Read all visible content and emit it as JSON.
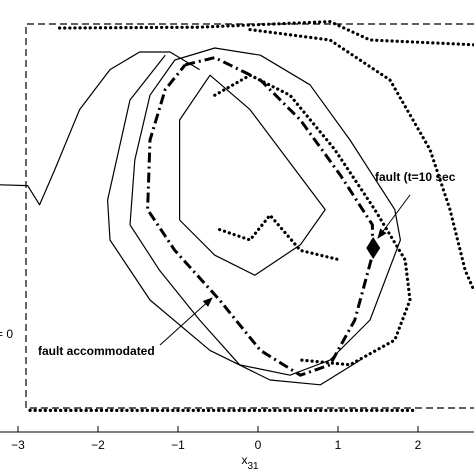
{
  "chart_data": {
    "type": "line",
    "xlabel": {
      "base": "x",
      "subscript": "31"
    },
    "left_label": "= 0",
    "annotations": [
      "fault (t=10 sec",
      "fault accommodated"
    ],
    "xlim": [
      -3.225,
      2.7
    ],
    "ylim": [
      -2.5,
      2.9
    ],
    "xticks": [
      {
        "value": -3,
        "label": "−3"
      },
      {
        "value": -2,
        "label": "−2"
      },
      {
        "value": -1,
        "label": "−1"
      },
      0,
      1,
      2
    ],
    "grid": false,
    "series": [
      {
        "color": "#000000",
        "style": "dashed",
        "x": [
          2.7,
          -2.9,
          -2.9,
          2.7
        ],
        "values": [
          2.6,
          2.6,
          -2.2,
          -2.2
        ]
      },
      {
        "color": "#000000",
        "style": "solid",
        "x": [
          -3.23,
          -2.88,
          -2.73,
          -2.54,
          -2.23,
          -1.85,
          -1.48,
          -1.1,
          -0.73
        ],
        "values": [
          0.59,
          0.58,
          0.34,
          0.78,
          1.53,
          2.03,
          2.25,
          2.25,
          2.03
        ]
      },
      {
        "color": "#000000",
        "style": "solid",
        "x": [
          -1.04,
          -0.54,
          0.03,
          0.65,
          1.15,
          1.71,
          1.78,
          1.4,
          0.9,
          0.4,
          -0.23,
          -0.73,
          -1.23,
          -1.6,
          -1.54,
          -1.35,
          -1.04
        ],
        "values": [
          2.15,
          2.3,
          2.21,
          1.84,
          1.15,
          0.28,
          -0.1,
          -1.1,
          -1.6,
          -1.79,
          -1.66,
          -1.1,
          -0.48,
          0.09,
          0.9,
          1.71,
          2.15
        ]
      },
      {
        "color": "#000000",
        "style": "solid",
        "x": [
          -1.16,
          -1.6,
          -1.88,
          -1.85,
          -1.35,
          -0.6,
          0.15,
          0.78,
          1.28
        ],
        "values": [
          2.21,
          1.65,
          0.4,
          -0.1,
          -0.85,
          -1.48,
          -1.85,
          -1.91,
          -1.6
        ]
      },
      {
        "color": "#000000",
        "style": "solid",
        "x": [
          -0.98,
          -0.98,
          -0.6,
          -0.1,
          0.84,
          0.53,
          -0.04,
          -0.54,
          -0.98
        ],
        "values": [
          0.15,
          1.4,
          1.96,
          1.53,
          0.28,
          -0.16,
          -0.54,
          -0.29,
          0.15
        ]
      },
      {
        "color": "#000000",
        "style": "dashdot",
        "x": [
          -0.91,
          -0.54,
          0.03,
          0.53,
          1.03,
          1.43,
          1.43,
          1.21,
          0.9,
          0.53,
          0.03,
          -0.48,
          -1.04,
          -1.38,
          -1.35,
          -1.16,
          -0.91
        ],
        "values": [
          2.09,
          2.18,
          1.9,
          1.4,
          0.71,
          0.09,
          -0.29,
          -1.1,
          -1.66,
          -1.79,
          -1.48,
          -0.85,
          -0.23,
          0.28,
          1.15,
          1.78,
          2.09
        ]
      },
      {
        "color": "#000000",
        "style": "dotted",
        "x": [
          -2.48,
          -0.73,
          0.9,
          1.4,
          2.7,
          null,
          -2.85,
          1.96,
          null,
          -0.54,
          -0.1,
          0.4,
          0.96,
          1.46,
          1.84,
          1.9,
          1.71,
          1.15,
          0.53,
          null,
          -0.1,
          0.9,
          1.65,
          2.15,
          2.4,
          2.59,
          2.7,
          null,
          -0.48,
          -0.1,
          0.15,
          0.53,
          1.03
        ],
        "values": [
          2.55,
          2.56,
          2.63,
          2.4,
          2.34,
          null,
          -2.23,
          -2.23,
          null,
          1.71,
          1.96,
          1.71,
          1.03,
          0.28,
          -0.35,
          -0.85,
          -1.35,
          -1.66,
          -1.6,
          null,
          2.53,
          2.4,
          1.9,
          1.03,
          0.28,
          -0.48,
          -0.73,
          null,
          0.03,
          -0.1,
          0.21,
          -0.23,
          -0.35
        ]
      }
    ],
    "markers": {
      "x": [
        1.44
      ],
      "values": [
        -0.2
      ],
      "color": "#000000"
    }
  }
}
